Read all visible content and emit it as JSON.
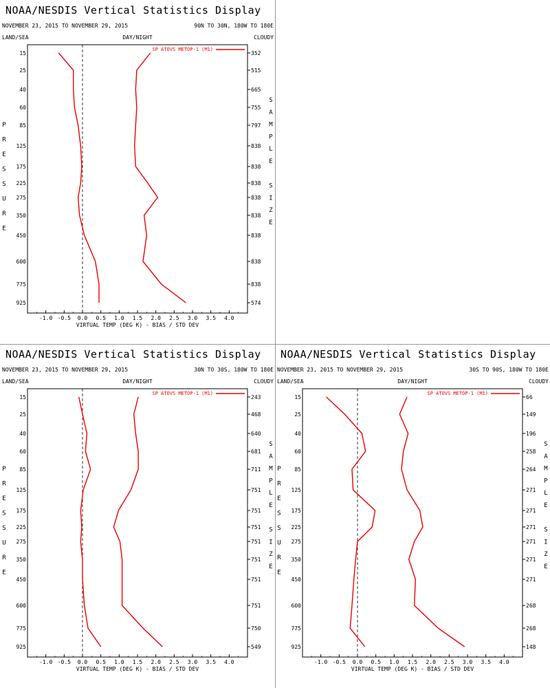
{
  "chart_data": [
    {
      "type": "line",
      "title": "NOAA/NESDIS Vertical Statistics Display",
      "date_range": "NOVEMBER 23, 2015 TO NOVEMBER 29, 2015",
      "region": "90N TO 30N, 180W TO 180E",
      "top_labels": {
        "left": "LAND/SEA",
        "center": "DAY/NIGHT",
        "right": "CLOUDY"
      },
      "ylabel": "PRESSURE",
      "y2label": "SAMPLE SIZE",
      "xlabel": "VIRTUAL TEMP (DEG K) - BIAS / STD DEV",
      "xlim": [
        -1.5,
        4.5
      ],
      "xticks": [
        -1.0,
        -0.5,
        0.0,
        0.5,
        1.0,
        1.5,
        2.0,
        2.5,
        3.0,
        3.5,
        4.0
      ],
      "xtick_labels": [
        "-1.0",
        "-0.5",
        "0.0",
        "0.5",
        "1.0",
        "1.5",
        "2.0",
        "2.5",
        "3.0",
        "3.5",
        "4.0"
      ],
      "pressure_levels": [
        "15",
        "25",
        "40",
        "60",
        "85",
        "125",
        "175",
        "225",
        "275",
        "350",
        "450",
        "600",
        "775",
        "925"
      ],
      "sample_sizes": [
        "352",
        "515",
        "665",
        "755",
        "797",
        "838",
        "838",
        "838",
        "838",
        "838",
        "838",
        "838",
        "838",
        "574"
      ],
      "legend": "SP ATOVS METOP-1 (M1)",
      "series": [
        {
          "role": "bias",
          "values": [
            -0.65,
            -0.25,
            -0.25,
            -0.22,
            -0.12,
            -0.05,
            -0.02,
            -0.05,
            -0.12,
            -0.08,
            0.05,
            0.35,
            0.45,
            0.45
          ]
        },
        {
          "role": "std_dev",
          "values": [
            1.85,
            1.48,
            1.45,
            1.48,
            1.45,
            1.42,
            1.45,
            1.78,
            2.05,
            1.68,
            1.75,
            1.65,
            2.15,
            2.82
          ]
        }
      ],
      "color": "#ee0000"
    },
    {
      "type": "line",
      "title": "NOAA/NESDIS Vertical Statistics Display",
      "date_range": "NOVEMBER 23, 2015 TO NOVEMBER 29, 2015",
      "region": "30N TO 30S, 180W TO 180E",
      "top_labels": {
        "left": "LAND/SEA",
        "center": "DAY/NIGHT",
        "right": "CLOUDY"
      },
      "ylabel": "PRESSURE",
      "y2label": "SAMPLE SIZE",
      "xlabel": "VIRTUAL TEMP (DEG K) - BIAS / STD DEV",
      "xlim": [
        -1.5,
        4.5
      ],
      "xticks": [
        -1.0,
        -0.5,
        0.0,
        0.5,
        1.0,
        1.5,
        2.0,
        2.5,
        3.0,
        3.5,
        4.0
      ],
      "xtick_labels": [
        "-1.0",
        "-0.5",
        "0.0",
        "0.5",
        "1.0",
        "1.5",
        "2.0",
        "2.5",
        "3.0",
        "3.5",
        "4.0"
      ],
      "pressure_levels": [
        "15",
        "25",
        "40",
        "60",
        "85",
        "125",
        "175",
        "225",
        "275",
        "350",
        "450",
        "600",
        "775",
        "925"
      ],
      "sample_sizes": [
        "243",
        "468",
        "640",
        "681",
        "711",
        "751",
        "751",
        "751",
        "751",
        "751",
        "751",
        "751",
        "750",
        "549"
      ],
      "legend": "SP ATOVS METOP-1 (M1)",
      "series": [
        {
          "role": "bias",
          "values": [
            -0.1,
            0.0,
            0.12,
            0.08,
            0.22,
            0.02,
            -0.05,
            -0.02,
            -0.05,
            0.0,
            0.0,
            0.05,
            0.15,
            0.5
          ]
        },
        {
          "role": "std_dev",
          "values": [
            1.52,
            1.4,
            1.45,
            1.52,
            1.52,
            1.32,
            0.98,
            0.85,
            1.02,
            1.08,
            1.08,
            1.08,
            1.65,
            2.18
          ]
        }
      ],
      "color": "#ee0000"
    },
    {
      "type": "line",
      "title": "NOAA/NESDIS Vertical Statistics Display",
      "date_range": "NOVEMBER 23, 2015 TO NOVEMBER 29, 2015",
      "region": "30S TO 90S, 180W TO 180E",
      "top_labels": {
        "left": "LAND/SEA",
        "center": "DAY/NIGHT",
        "right": "CLOUDY"
      },
      "ylabel": "PRESSURE",
      "y2label": "SAMPLE SIZE",
      "xlabel": "VIRTUAL TEMP (DEG K) - BIAS / STD DEV",
      "xlim": [
        -1.5,
        4.5
      ],
      "xticks": [
        -1.0,
        -0.5,
        0.0,
        0.5,
        1.0,
        1.5,
        2.0,
        2.5,
        3.0,
        3.5,
        4.0
      ],
      "xtick_labels": [
        "-1.0",
        "-0.5",
        "0.0",
        "0.5",
        "1.0",
        "1.5",
        "2.0",
        "2.5",
        "3.0",
        "3.5",
        "4.0"
      ],
      "pressure_levels": [
        "15",
        "25",
        "40",
        "60",
        "85",
        "125",
        "175",
        "225",
        "275",
        "350",
        "450",
        "600",
        "775",
        "925"
      ],
      "sample_sizes": [
        "66",
        "149",
        "196",
        "258",
        "264",
        "271",
        "271",
        "271",
        "271",
        "271",
        "271",
        "268",
        "268",
        "148"
      ],
      "legend": "SP ATOVS METOP-1 (M1)",
      "series": [
        {
          "role": "bias",
          "values": [
            -0.85,
            -0.35,
            0.12,
            0.22,
            -0.15,
            -0.12,
            0.48,
            0.4,
            0.0,
            -0.05,
            -0.1,
            -0.15,
            -0.2,
            0.2
          ]
        },
        {
          "role": "std_dev",
          "values": [
            1.35,
            1.15,
            1.38,
            1.25,
            1.2,
            1.35,
            1.7,
            1.78,
            1.55,
            1.4,
            1.58,
            1.55,
            2.2,
            2.92
          ]
        }
      ],
      "color": "#ee0000"
    }
  ]
}
